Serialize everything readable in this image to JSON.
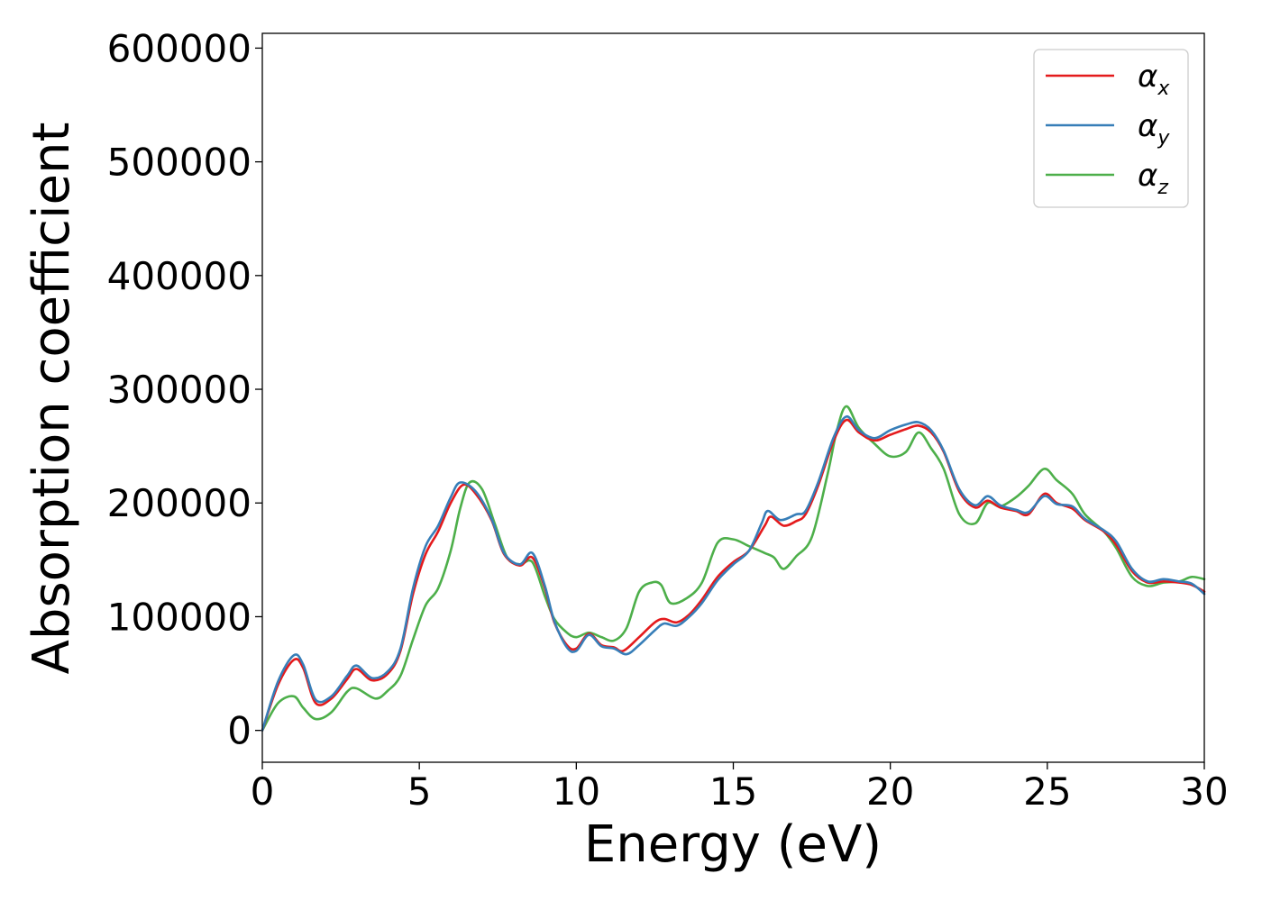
{
  "chart_data": {
    "type": "line",
    "title": "",
    "xlabel": "Energy (eV)",
    "ylabel": "Absorption coefficient",
    "xlim": [
      0,
      30
    ],
    "ylim": [
      -28000,
      613000
    ],
    "xticks": [
      0,
      5,
      10,
      15,
      20,
      25,
      30
    ],
    "yticks": [
      0,
      100000,
      200000,
      300000,
      400000,
      500000,
      600000
    ],
    "xtick_labels": [
      "0",
      "5",
      "10",
      "15",
      "20",
      "25",
      "30"
    ],
    "ytick_labels": [
      "0",
      "100000",
      "200000",
      "300000",
      "400000",
      "500000",
      "600000"
    ],
    "grid": false,
    "legend_position": "top-right",
    "legend": {
      "alpha_symbol": "α",
      "subscripts": [
        "x",
        "y",
        "z"
      ]
    },
    "series": [
      {
        "name": "αx",
        "color": "#e41a1c",
        "points": [
          [
            0,
            0
          ],
          [
            0.5,
            40000
          ],
          [
            1,
            62000
          ],
          [
            1.3,
            55000
          ],
          [
            1.7,
            24000
          ],
          [
            2.2,
            28000
          ],
          [
            2.7,
            45000
          ],
          [
            3,
            54000
          ],
          [
            3.5,
            44000
          ],
          [
            4,
            50000
          ],
          [
            4.4,
            70000
          ],
          [
            4.8,
            120000
          ],
          [
            5.2,
            155000
          ],
          [
            5.6,
            175000
          ],
          [
            6,
            200000
          ],
          [
            6.4,
            216000
          ],
          [
            6.8,
            208000
          ],
          [
            7.3,
            185000
          ],
          [
            7.7,
            155000
          ],
          [
            8.2,
            145000
          ],
          [
            8.6,
            152000
          ],
          [
            9,
            125000
          ],
          [
            9.3,
            95000
          ],
          [
            9.7,
            75000
          ],
          [
            10,
            72000
          ],
          [
            10.4,
            85000
          ],
          [
            10.8,
            75000
          ],
          [
            11.2,
            73000
          ],
          [
            11.5,
            70000
          ],
          [
            12,
            82000
          ],
          [
            12.5,
            95000
          ],
          [
            12.8,
            98000
          ],
          [
            13.2,
            95000
          ],
          [
            13.6,
            102000
          ],
          [
            14,
            115000
          ],
          [
            14.5,
            135000
          ],
          [
            15,
            148000
          ],
          [
            15.5,
            158000
          ],
          [
            16,
            180000
          ],
          [
            16.2,
            188000
          ],
          [
            16.6,
            180000
          ],
          [
            17,
            184000
          ],
          [
            17.3,
            190000
          ],
          [
            17.7,
            215000
          ],
          [
            18.2,
            255000
          ],
          [
            18.6,
            273000
          ],
          [
            19,
            262000
          ],
          [
            19.5,
            255000
          ],
          [
            20,
            260000
          ],
          [
            20.5,
            265000
          ],
          [
            20.9,
            268000
          ],
          [
            21.3,
            262000
          ],
          [
            21.7,
            245000
          ],
          [
            22.2,
            210000
          ],
          [
            22.7,
            196000
          ],
          [
            23.1,
            202000
          ],
          [
            23.5,
            196000
          ],
          [
            24,
            193000
          ],
          [
            24.4,
            190000
          ],
          [
            24.9,
            208000
          ],
          [
            25.3,
            200000
          ],
          [
            25.8,
            195000
          ],
          [
            26.2,
            185000
          ],
          [
            26.8,
            175000
          ],
          [
            27.2,
            163000
          ],
          [
            27.7,
            140000
          ],
          [
            28.2,
            130000
          ],
          [
            28.7,
            131000
          ],
          [
            29.2,
            130000
          ],
          [
            29.6,
            128000
          ],
          [
            30,
            122000
          ]
        ]
      },
      {
        "name": "αy",
        "color": "#377eb8",
        "points": [
          [
            0,
            0
          ],
          [
            0.5,
            43000
          ],
          [
            1,
            66000
          ],
          [
            1.3,
            58000
          ],
          [
            1.7,
            27000
          ],
          [
            2.2,
            30000
          ],
          [
            2.7,
            48000
          ],
          [
            3,
            57000
          ],
          [
            3.5,
            46000
          ],
          [
            4,
            52000
          ],
          [
            4.4,
            72000
          ],
          [
            4.8,
            125000
          ],
          [
            5.2,
            162000
          ],
          [
            5.6,
            180000
          ],
          [
            6,
            205000
          ],
          [
            6.3,
            218000
          ],
          [
            6.8,
            210000
          ],
          [
            7.3,
            186000
          ],
          [
            7.7,
            156000
          ],
          [
            8.2,
            146000
          ],
          [
            8.6,
            156000
          ],
          [
            9,
            127000
          ],
          [
            9.3,
            96000
          ],
          [
            9.7,
            73000
          ],
          [
            10,
            70000
          ],
          [
            10.4,
            84000
          ],
          [
            10.8,
            74000
          ],
          [
            11.2,
            72000
          ],
          [
            11.6,
            67000
          ],
          [
            12,
            75000
          ],
          [
            12.5,
            88000
          ],
          [
            12.8,
            94000
          ],
          [
            13.2,
            92000
          ],
          [
            13.6,
            100000
          ],
          [
            14,
            112000
          ],
          [
            14.5,
            132000
          ],
          [
            15,
            146000
          ],
          [
            15.5,
            158000
          ],
          [
            15.9,
            182000
          ],
          [
            16.1,
            193000
          ],
          [
            16.5,
            185000
          ],
          [
            17,
            190000
          ],
          [
            17.3,
            193000
          ],
          [
            17.7,
            218000
          ],
          [
            18.2,
            258000
          ],
          [
            18.6,
            276000
          ],
          [
            19,
            264000
          ],
          [
            19.5,
            257000
          ],
          [
            20,
            264000
          ],
          [
            20.5,
            269000
          ],
          [
            20.9,
            271000
          ],
          [
            21.3,
            264000
          ],
          [
            21.7,
            246000
          ],
          [
            22.2,
            212000
          ],
          [
            22.7,
            198000
          ],
          [
            23.1,
            206000
          ],
          [
            23.5,
            198000
          ],
          [
            24,
            194000
          ],
          [
            24.4,
            192000
          ],
          [
            24.9,
            206000
          ],
          [
            25.3,
            199000
          ],
          [
            25.8,
            197000
          ],
          [
            26.2,
            186000
          ],
          [
            26.8,
            176000
          ],
          [
            27.2,
            166000
          ],
          [
            27.7,
            142000
          ],
          [
            28.2,
            131000
          ],
          [
            28.7,
            133000
          ],
          [
            29.2,
            131000
          ],
          [
            29.6,
            129000
          ],
          [
            30,
            120000
          ]
        ]
      },
      {
        "name": "αz",
        "color": "#4daf4a",
        "points": [
          [
            0,
            0
          ],
          [
            0.5,
            24000
          ],
          [
            1,
            30000
          ],
          [
            1.3,
            20000
          ],
          [
            1.7,
            10000
          ],
          [
            2.2,
            16000
          ],
          [
            2.7,
            34000
          ],
          [
            3,
            37000
          ],
          [
            3.6,
            28000
          ],
          [
            4,
            35000
          ],
          [
            4.4,
            48000
          ],
          [
            4.8,
            80000
          ],
          [
            5.2,
            110000
          ],
          [
            5.6,
            125000
          ],
          [
            6,
            158000
          ],
          [
            6.3,
            195000
          ],
          [
            6.6,
            218000
          ],
          [
            7,
            212000
          ],
          [
            7.4,
            182000
          ],
          [
            7.8,
            152000
          ],
          [
            8.2,
            146000
          ],
          [
            8.6,
            148000
          ],
          [
            9,
            118000
          ],
          [
            9.3,
            98000
          ],
          [
            9.7,
            86000
          ],
          [
            10,
            82000
          ],
          [
            10.4,
            86000
          ],
          [
            10.8,
            82000
          ],
          [
            11.2,
            79000
          ],
          [
            11.6,
            90000
          ],
          [
            12,
            122000
          ],
          [
            12.4,
            130000
          ],
          [
            12.7,
            128000
          ],
          [
            13,
            112000
          ],
          [
            13.5,
            116000
          ],
          [
            14,
            130000
          ],
          [
            14.5,
            165000
          ],
          [
            15,
            168000
          ],
          [
            15.5,
            162000
          ],
          [
            16,
            156000
          ],
          [
            16.3,
            152000
          ],
          [
            16.6,
            142000
          ],
          [
            17,
            153000
          ],
          [
            17.5,
            170000
          ],
          [
            18,
            225000
          ],
          [
            18.3,
            264000
          ],
          [
            18.6,
            285000
          ],
          [
            19,
            266000
          ],
          [
            19.5,
            252000
          ],
          [
            20,
            241000
          ],
          [
            20.5,
            245000
          ],
          [
            20.9,
            262000
          ],
          [
            21.3,
            248000
          ],
          [
            21.7,
            230000
          ],
          [
            22.2,
            190000
          ],
          [
            22.7,
            182000
          ],
          [
            23.1,
            200000
          ],
          [
            23.5,
            197000
          ],
          [
            24,
            205000
          ],
          [
            24.4,
            215000
          ],
          [
            24.9,
            230000
          ],
          [
            25.3,
            220000
          ],
          [
            25.8,
            208000
          ],
          [
            26.2,
            190000
          ],
          [
            26.8,
            175000
          ],
          [
            27.2,
            160000
          ],
          [
            27.7,
            135000
          ],
          [
            28.2,
            127000
          ],
          [
            28.7,
            130000
          ],
          [
            29.2,
            131000
          ],
          [
            29.6,
            135000
          ],
          [
            30,
            133000
          ]
        ]
      }
    ]
  }
}
